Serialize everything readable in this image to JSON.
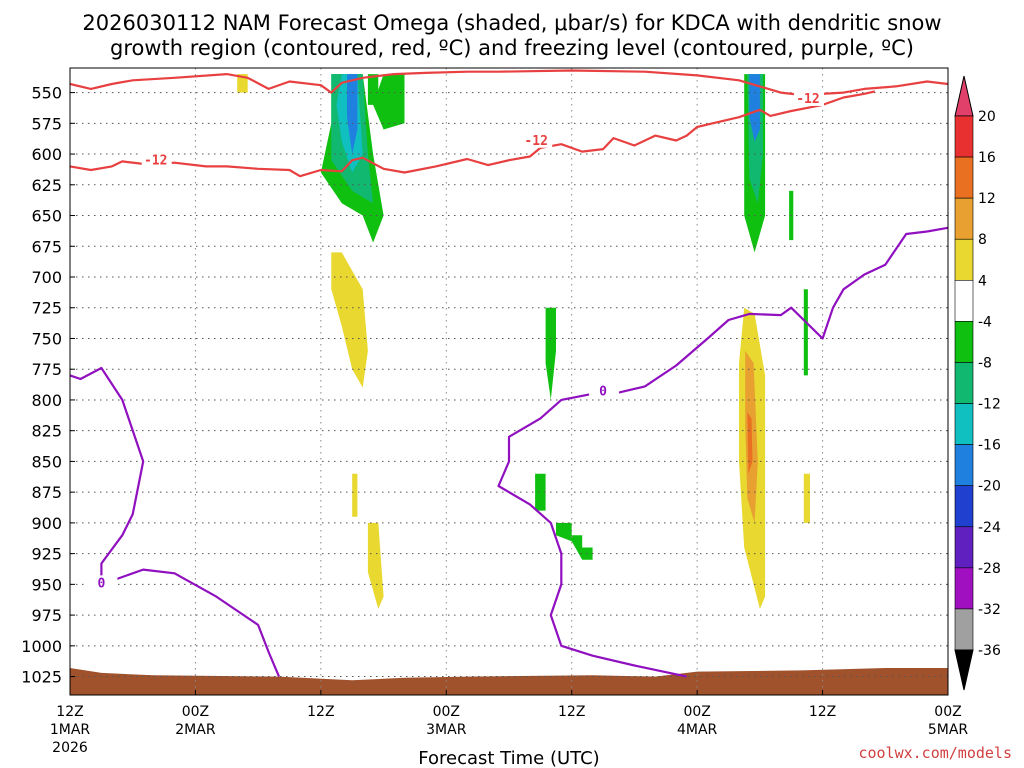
{
  "chart_data": {
    "type": "heatmap",
    "title_line1": "2026030112 NAM Forecast Omega (shaded, μbar/s) for KDCA with dendritic snow",
    "title_line2": "growth region (contoured, red, ºC) and freezing level (contoured, purple, ºC)",
    "xlabel": "Forecast Time (UTC)",
    "credit": "coolwx.com/models",
    "ylim": [
      1040,
      530
    ],
    "xlim_hours": [
      0,
      84
    ],
    "y_ticks": [
      "550",
      "575",
      "600",
      "625",
      "650",
      "675",
      "700",
      "725",
      "750",
      "775",
      "800",
      "825",
      "850",
      "875",
      "900",
      "925",
      "950",
      "975",
      "1000",
      "1025"
    ],
    "x_ticks": [
      {
        "hour": 0,
        "label": "12Z",
        "sub1": "1MAR",
        "sub2": "2026"
      },
      {
        "hour": 12,
        "label": "00Z",
        "sub1": "2MAR",
        "sub2": ""
      },
      {
        "hour": 24,
        "label": "12Z",
        "sub1": "",
        "sub2": ""
      },
      {
        "hour": 36,
        "label": "00Z",
        "sub1": "3MAR",
        "sub2": ""
      },
      {
        "hour": 48,
        "label": "12Z",
        "sub1": "",
        "sub2": ""
      },
      {
        "hour": 60,
        "label": "00Z",
        "sub1": "4MAR",
        "sub2": ""
      },
      {
        "hour": 72,
        "label": "12Z",
        "sub1": "",
        "sub2": ""
      },
      {
        "hour": 84,
        "label": "00Z",
        "sub1": "5MAR",
        "sub2": ""
      }
    ],
    "colorbar": {
      "labels": [
        "20",
        "16",
        "12",
        "8",
        "4",
        "-4",
        "-8",
        "-12",
        "-16",
        "-20",
        "-24",
        "-28",
        "-32",
        "-36"
      ],
      "colors": [
        "#e0406a",
        "#e83030",
        "#e87020",
        "#e8a030",
        "#e8d830",
        "#ffffff",
        "#10c010",
        "#10b870",
        "#10c0c0",
        "#2080e0",
        "#2040d0",
        "#6020c0",
        "#a010c0",
        "#a0a0a0",
        "#000000"
      ]
    },
    "colors": {
      "dgz": "#e84040",
      "freezing": "#9010c0",
      "ground": "#a0522d"
    },
    "dgz_label": "-12",
    "freezing_label": "0",
    "dgz_upper": [
      [
        0,
        543
      ],
      [
        2,
        547
      ],
      [
        4,
        543
      ],
      [
        6,
        540
      ],
      [
        10,
        538
      ],
      [
        15,
        535
      ],
      [
        17,
        538
      ],
      [
        19,
        547
      ],
      [
        21,
        541
      ],
      [
        24,
        544
      ],
      [
        25,
        550
      ],
      [
        26,
        542
      ],
      [
        28,
        538
      ],
      [
        31,
        535
      ],
      [
        34,
        534
      ],
      [
        38,
        533
      ],
      [
        41,
        533
      ],
      [
        48,
        532
      ],
      [
        55,
        533
      ],
      [
        60,
        536
      ],
      [
        64,
        540
      ],
      [
        66,
        545
      ],
      [
        68,
        550
      ],
      [
        70,
        552
      ],
      [
        74,
        550
      ],
      [
        76,
        547
      ],
      [
        79,
        545
      ],
      [
        82,
        541
      ],
      [
        84,
        543
      ]
    ],
    "dgz_lower": [
      [
        0,
        610
      ],
      [
        2,
        613
      ],
      [
        4,
        610
      ],
      [
        5,
        606
      ],
      [
        7,
        608
      ],
      [
        10,
        607
      ],
      [
        13,
        610
      ],
      [
        15,
        610
      ],
      [
        18,
        612
      ],
      [
        21,
        613
      ],
      [
        22,
        618
      ],
      [
        24,
        613
      ],
      [
        26,
        614
      ],
      [
        27,
        605
      ],
      [
        28,
        603
      ],
      [
        30,
        612
      ],
      [
        32,
        615
      ],
      [
        35,
        610
      ],
      [
        38,
        604
      ],
      [
        40,
        609
      ],
      [
        42,
        605
      ],
      [
        44,
        602
      ],
      [
        45,
        595
      ],
      [
        47,
        592
      ],
      [
        49,
        598
      ],
      [
        51,
        596
      ],
      [
        52,
        587
      ],
      [
        54,
        593
      ],
      [
        56,
        585
      ],
      [
        58,
        589
      ],
      [
        59,
        585
      ],
      [
        60,
        578
      ],
      [
        62,
        574
      ],
      [
        64,
        570
      ],
      [
        66,
        564
      ],
      [
        67,
        569
      ],
      [
        69,
        565
      ],
      [
        72,
        560
      ],
      [
        74,
        554
      ],
      [
        76,
        551
      ],
      [
        77,
        549
      ]
    ],
    "freezing_line": [
      [
        0,
        780
      ],
      [
        1,
        783
      ],
      [
        3,
        774
      ],
      [
        5,
        800
      ],
      [
        7,
        850
      ],
      [
        6,
        893
      ],
      [
        5,
        910
      ],
      [
        3,
        933
      ],
      [
        3,
        950
      ],
      [
        7,
        938
      ],
      [
        10,
        941
      ],
      [
        14,
        960
      ],
      [
        18,
        983
      ],
      [
        19,
        1005
      ],
      [
        20,
        1025
      ]
    ],
    "freezing_line_2": [
      [
        59,
        1025
      ],
      [
        54,
        1016
      ],
      [
        50,
        1008
      ],
      [
        47,
        1000
      ],
      [
        46,
        975
      ],
      [
        47,
        950
      ],
      [
        47,
        925
      ],
      [
        46,
        900
      ],
      [
        44,
        885
      ],
      [
        41,
        870
      ],
      [
        42,
        850
      ],
      [
        42,
        830
      ],
      [
        45,
        815
      ],
      [
        47,
        800
      ],
      [
        50,
        795
      ],
      [
        52,
        795
      ],
      [
        55,
        789
      ],
      [
        58,
        772
      ],
      [
        61,
        750
      ],
      [
        63,
        735
      ],
      [
        65,
        730
      ],
      [
        68,
        731
      ],
      [
        69,
        725
      ],
      [
        72,
        750
      ],
      [
        73,
        725
      ],
      [
        74,
        710
      ],
      [
        76,
        698
      ],
      [
        78,
        690
      ],
      [
        80,
        665
      ],
      [
        82,
        663
      ],
      [
        84,
        660
      ]
    ],
    "omega_regions": [
      {
        "color": "#10c010",
        "pts": [
          [
            25,
            535
          ],
          [
            28,
            535
          ],
          [
            29,
            600
          ],
          [
            30,
            650
          ],
          [
            29,
            672
          ],
          [
            28,
            650
          ],
          [
            26,
            640
          ],
          [
            24,
            615
          ],
          [
            25,
            575
          ]
        ]
      },
      {
        "color": "#10b870",
        "pts": [
          [
            25,
            535
          ],
          [
            28,
            535
          ],
          [
            28.5,
            600
          ],
          [
            29,
            640
          ],
          [
            27,
            630
          ],
          [
            25,
            605
          ],
          [
            25,
            575
          ]
        ]
      },
      {
        "color": "#10c0c0",
        "pts": [
          [
            26,
            535
          ],
          [
            27.5,
            535
          ],
          [
            28,
            600
          ],
          [
            27,
            615
          ],
          [
            26,
            590
          ],
          [
            25.5,
            560
          ]
        ]
      },
      {
        "color": "#2080e0",
        "pts": [
          [
            26.5,
            535
          ],
          [
            27.5,
            535
          ],
          [
            27.5,
            580
          ],
          [
            27,
            600
          ],
          [
            26.5,
            570
          ]
        ]
      },
      {
        "color": "#10c010",
        "pts": [
          [
            30,
            535
          ],
          [
            32,
            535
          ],
          [
            32,
            575
          ],
          [
            30,
            580
          ],
          [
            29,
            560
          ]
        ]
      },
      {
        "color": "#10c010",
        "pts": [
          [
            28.5,
            535
          ],
          [
            29.5,
            535
          ],
          [
            29.5,
            560
          ],
          [
            28.5,
            560
          ]
        ]
      },
      {
        "color": "#10c010",
        "pts": [
          [
            64.5,
            535
          ],
          [
            66.5,
            535
          ],
          [
            66.5,
            600
          ],
          [
            66.5,
            650
          ],
          [
            65.5,
            680
          ],
          [
            64.5,
            650
          ],
          [
            64.5,
            600
          ]
        ]
      },
      {
        "color": "#10b870",
        "pts": [
          [
            64.8,
            535
          ],
          [
            66.3,
            535
          ],
          [
            66.3,
            600
          ],
          [
            65.8,
            640
          ],
          [
            65,
            620
          ]
        ]
      },
      {
        "color": "#2080e0",
        "pts": [
          [
            65,
            535
          ],
          [
            66,
            535
          ],
          [
            66,
            580
          ],
          [
            65.5,
            590
          ],
          [
            65,
            570
          ]
        ]
      },
      {
        "color": "#10c010",
        "pts": [
          [
            68.8,
            630
          ],
          [
            69.2,
            630
          ],
          [
            69.2,
            670
          ],
          [
            68.8,
            670
          ]
        ]
      },
      {
        "color": "#10c010",
        "pts": [
          [
            70.2,
            710
          ],
          [
            70.6,
            710
          ],
          [
            70.6,
            780
          ],
          [
            70.2,
            780
          ]
        ]
      },
      {
        "color": "#e8d830",
        "pts": [
          [
            16,
            535
          ],
          [
            17,
            535
          ],
          [
            17,
            550
          ],
          [
            16,
            550
          ]
        ]
      },
      {
        "color": "#e8d830",
        "pts": [
          [
            25,
            680
          ],
          [
            26,
            680
          ],
          [
            28,
            710
          ],
          [
            28.5,
            760
          ],
          [
            28,
            790
          ],
          [
            27,
            775
          ],
          [
            26,
            740
          ],
          [
            25,
            710
          ]
        ]
      },
      {
        "color": "#e8d830",
        "pts": [
          [
            27,
            860
          ],
          [
            27.5,
            860
          ],
          [
            27.5,
            895
          ],
          [
            27,
            895
          ]
        ]
      },
      {
        "color": "#e8d830",
        "pts": [
          [
            28.5,
            900
          ],
          [
            29.5,
            900
          ],
          [
            30,
            960
          ],
          [
            29.5,
            970
          ],
          [
            28.5,
            940
          ]
        ]
      },
      {
        "color": "#10c010",
        "pts": [
          [
            45.5,
            725
          ],
          [
            46.5,
            725
          ],
          [
            46.5,
            760
          ],
          [
            46,
            800
          ],
          [
            45.5,
            770
          ]
        ]
      },
      {
        "color": "#10c010",
        "pts": [
          [
            44.5,
            860
          ],
          [
            45.5,
            860
          ],
          [
            45.5,
            890
          ],
          [
            44.5,
            890
          ]
        ]
      },
      {
        "color": "#10c010",
        "pts": [
          [
            46.5,
            900
          ],
          [
            48,
            900
          ],
          [
            48,
            910
          ],
          [
            49,
            910
          ],
          [
            49,
            920
          ],
          [
            50,
            920
          ],
          [
            50,
            930
          ],
          [
            49,
            930
          ],
          [
            48,
            915
          ],
          [
            46.5,
            910
          ]
        ]
      },
      {
        "color": "#e8d830",
        "pts": [
          [
            64.5,
            725
          ],
          [
            65.5,
            730
          ],
          [
            66.5,
            780
          ],
          [
            66.5,
            900
          ],
          [
            66.5,
            960
          ],
          [
            66,
            970
          ],
          [
            64.5,
            920
          ],
          [
            64,
            850
          ],
          [
            64,
            770
          ]
        ]
      },
      {
        "color": "#e8a030",
        "pts": [
          [
            64.6,
            760
          ],
          [
            65.4,
            770
          ],
          [
            65.8,
            850
          ],
          [
            65.5,
            900
          ],
          [
            64.8,
            880
          ],
          [
            64.6,
            820
          ]
        ]
      },
      {
        "color": "#e87020",
        "pts": [
          [
            64.8,
            810
          ],
          [
            65.2,
            815
          ],
          [
            65.3,
            850
          ],
          [
            64.9,
            860
          ]
        ]
      },
      {
        "color": "#e8d830",
        "pts": [
          [
            70.2,
            860
          ],
          [
            70.8,
            860
          ],
          [
            70.8,
            900
          ],
          [
            70.2,
            900
          ]
        ]
      }
    ],
    "ground_profile": [
      [
        0,
        1018
      ],
      [
        3,
        1022
      ],
      [
        8,
        1024
      ],
      [
        20,
        1025
      ],
      [
        27,
        1028
      ],
      [
        32,
        1026
      ],
      [
        38,
        1025
      ],
      [
        50,
        1024
      ],
      [
        56,
        1025
      ],
      [
        60,
        1021
      ],
      [
        70,
        1020
      ],
      [
        78,
        1018
      ],
      [
        84,
        1018
      ]
    ]
  }
}
